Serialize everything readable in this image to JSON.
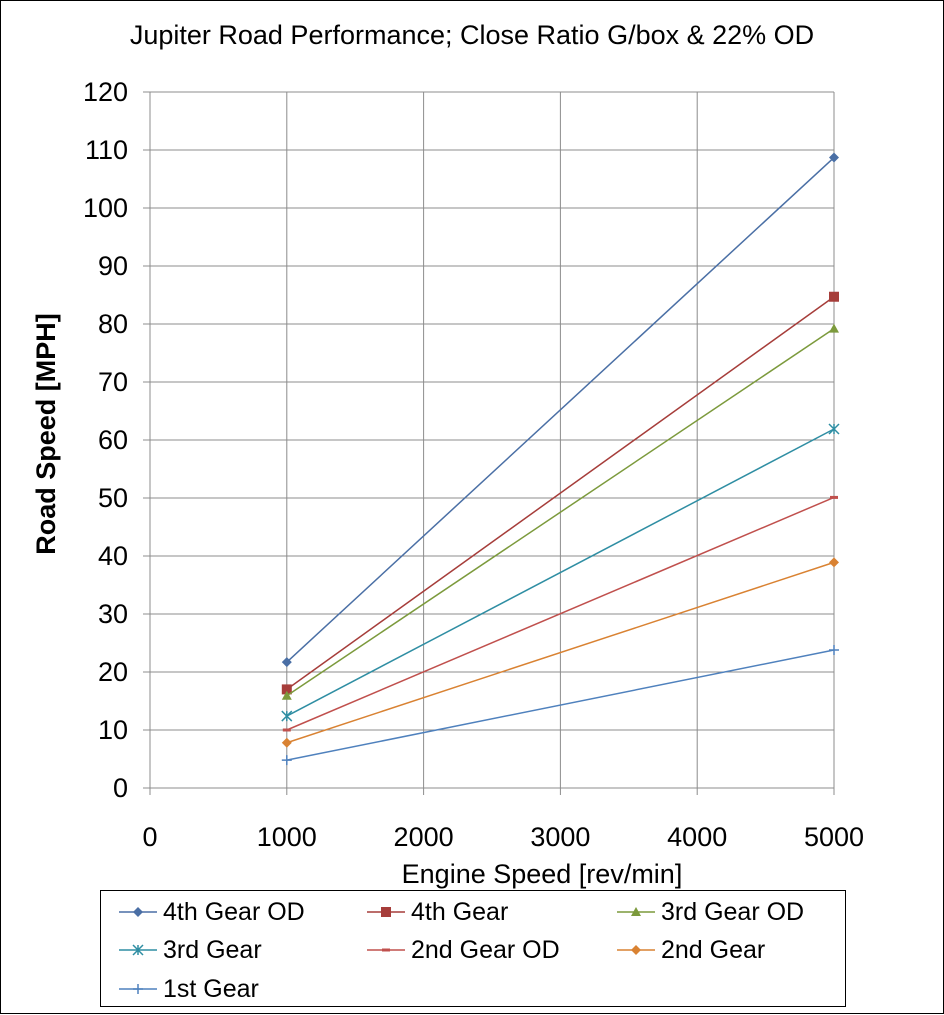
{
  "chart_data": {
    "type": "line",
    "title": "Jupiter Road Performance; Close Ratio G/box & 22% OD",
    "xlabel": "Engine Speed [rev/min]",
    "ylabel": "Road Speed [MPH]",
    "xlim": [
      0,
      5000
    ],
    "ylim": [
      0,
      120
    ],
    "x_ticks": [
      0,
      1000,
      2000,
      3000,
      4000,
      5000
    ],
    "y_ticks": [
      0,
      10,
      20,
      30,
      40,
      50,
      60,
      70,
      80,
      90,
      100,
      110,
      120
    ],
    "grid": true,
    "legend_position": "bottom",
    "series": [
      {
        "name": "4th Gear OD",
        "x": [
          1000,
          5000
        ],
        "y": [
          21.7,
          108.7
        ],
        "color": "#4a6fa5",
        "marker": "diamond"
      },
      {
        "name": "4th Gear",
        "x": [
          1000,
          5000
        ],
        "y": [
          17.0,
          84.7
        ],
        "color": "#a63d3a",
        "marker": "square"
      },
      {
        "name": "3rd Gear OD",
        "x": [
          1000,
          5000
        ],
        "y": [
          15.9,
          79.2
        ],
        "color": "#7c9a3c",
        "marker": "triangle"
      },
      {
        "name": "3rd Gear",
        "x": [
          1000,
          5000
        ],
        "y": [
          12.4,
          61.9
        ],
        "color": "#2f8ea3",
        "marker": "star"
      },
      {
        "name": "2nd Gear OD",
        "x": [
          1000,
          5000
        ],
        "y": [
          10.0,
          50.1
        ],
        "color": "#c0504d",
        "marker": "dash"
      },
      {
        "name": "2nd Gear",
        "x": [
          1000,
          5000
        ],
        "y": [
          7.8,
          38.9
        ],
        "color": "#d98232",
        "marker": "diamond"
      },
      {
        "name": "1st Gear",
        "x": [
          1000,
          5000
        ],
        "y": [
          4.8,
          23.8
        ],
        "color": "#4f81bd",
        "marker": "plus"
      }
    ]
  }
}
